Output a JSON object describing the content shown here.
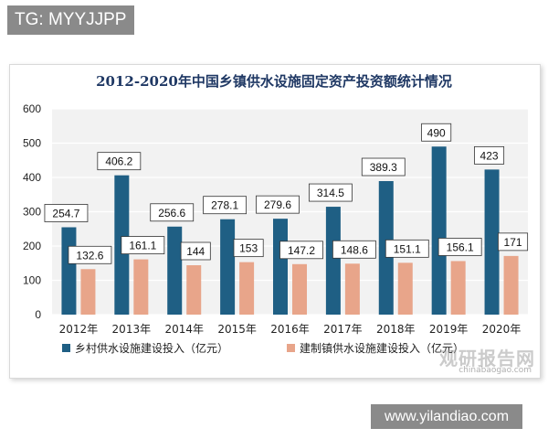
{
  "badge": "TG: MYYJJPP",
  "url": "www.yilandiao.com",
  "watermark": {
    "main": "观研报告网",
    "sub": "chinabaogao.com"
  },
  "colors": {
    "rural": "#1f5f84",
    "town": "#e8a58a",
    "title": "#1f3864"
  },
  "chart_data": {
    "type": "bar",
    "title": "2012-2020年中国乡镇供水设施固定资产投资额统计情况",
    "xlabel": "",
    "ylabel": "",
    "ylim": [
      0,
      600
    ],
    "yticks": [
      "0",
      "100",
      "200",
      "300",
      "400",
      "500",
      "600"
    ],
    "grid": true,
    "legend": "bottom",
    "categories": [
      "2012年",
      "2013年",
      "2014年",
      "2015年",
      "2016年",
      "2017年",
      "2018年",
      "2019年",
      "2020年"
    ],
    "series": [
      {
        "name": "乡村供水设施建设投入（亿元）",
        "values": [
          254.7,
          406.2,
          256.6,
          278.1,
          279.6,
          314.5,
          389.3,
          490,
          423
        ],
        "labels": [
          "254.7",
          "406.2",
          "256.6",
          "278.1",
          "279.6",
          "314.5",
          "389.3",
          "490",
          "423"
        ]
      },
      {
        "name": "建制镇供水设施建设投入（亿元）",
        "values": [
          132.6,
          161.1,
          144,
          153,
          147.2,
          148.6,
          151.1,
          156.1,
          171
        ],
        "labels": [
          "132.6",
          "161.1",
          "144",
          "153",
          "147.2",
          "148.6",
          "151.1",
          "156.1",
          "171"
        ]
      }
    ]
  }
}
